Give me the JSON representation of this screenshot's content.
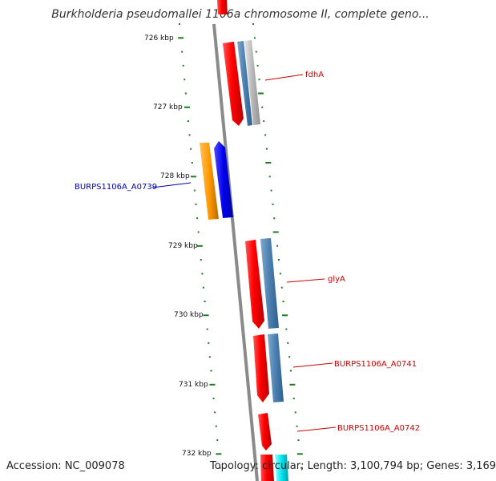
{
  "title": "Burkholderia pseudomallei 1106a chromosome II, complete geno...",
  "accession": "Accession: NC_009078",
  "summary": "Topology: circular; Length: 3,100,794 bp; Genes: 3,169",
  "colors": {
    "backbone": "#8a8a8a",
    "tick": "#1e7a1e",
    "label_red": "#cc0000",
    "label_blue": "#0000aa",
    "gene_red": "#ff0000",
    "gene_steelblue": "#4a7fb0",
    "gene_gray": "#b8b8b8",
    "gene_orange": "#ff9900",
    "gene_blue": "#0000ee",
    "gene_cyan": "#00e5ee"
  },
  "scale_labels": [
    "726 kbp",
    "727 kbp",
    "728 kbp",
    "729 kbp",
    "730 kbp",
    "731 kbp",
    "732 kbp"
  ],
  "gene_labels": [
    {
      "id": "fdhA",
      "text": "fdhA",
      "color": "#cc0000"
    },
    {
      "id": "BURPS1106A_A0739",
      "text": "BURPS1106A_A0739",
      "color": "#0000aa"
    },
    {
      "id": "glyA",
      "text": "glyA",
      "color": "#cc0000"
    },
    {
      "id": "BURPS1106A_A0741",
      "text": "BURPS1106A_A0741",
      "color": "#cc0000"
    },
    {
      "id": "BURPS1106A_A0742",
      "text": "BURPS1106A_A0742",
      "color": "#cc0000"
    }
  ]
}
